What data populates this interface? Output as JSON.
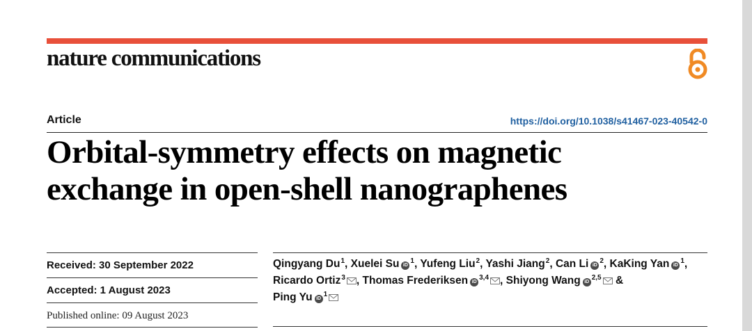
{
  "journal": {
    "name": "nature communications"
  },
  "article": {
    "type": "Article",
    "doi": "https://doi.org/10.1038/s41467-023-40542-0",
    "title_line1": "Orbital-symmetry effects on magnetic",
    "title_line2": "exchange in open-shell nanographenes"
  },
  "dates": {
    "received": "Received: 30 September 2022",
    "accepted": "Accepted: 1 August 2023",
    "published": "Published online: 09 August 2023"
  },
  "authors": {
    "a1": {
      "name": "Qingyang Du",
      "sup": "1"
    },
    "a2": {
      "name": "Xuelei Su",
      "sup": "1"
    },
    "a3": {
      "name": "Yufeng Liu",
      "sup": "2"
    },
    "a4": {
      "name": "Yashi Jiang",
      "sup": "2"
    },
    "a5": {
      "name": "Can Li",
      "sup": "2"
    },
    "a6": {
      "name": "KaKing Yan",
      "sup": "1"
    },
    "a7": {
      "name": "Ricardo Ortiz",
      "sup": "3"
    },
    "a8": {
      "name": "Thomas Frederiksen",
      "sup": "3,4"
    },
    "a9": {
      "name": "Shiyong Wang",
      "sup": "2,5"
    },
    "a10": {
      "name": "Ping Yu",
      "sup": "1"
    },
    "separator": ",",
    "conjunction": "&"
  },
  "colors": {
    "accent_bar": "#e8503a",
    "open_access": "#f08a24",
    "doi_link": "#1f5fa0"
  },
  "icons": {
    "open_access": "open-access-lock-icon",
    "orcid": "orcid-icon",
    "email": "envelope-icon"
  }
}
